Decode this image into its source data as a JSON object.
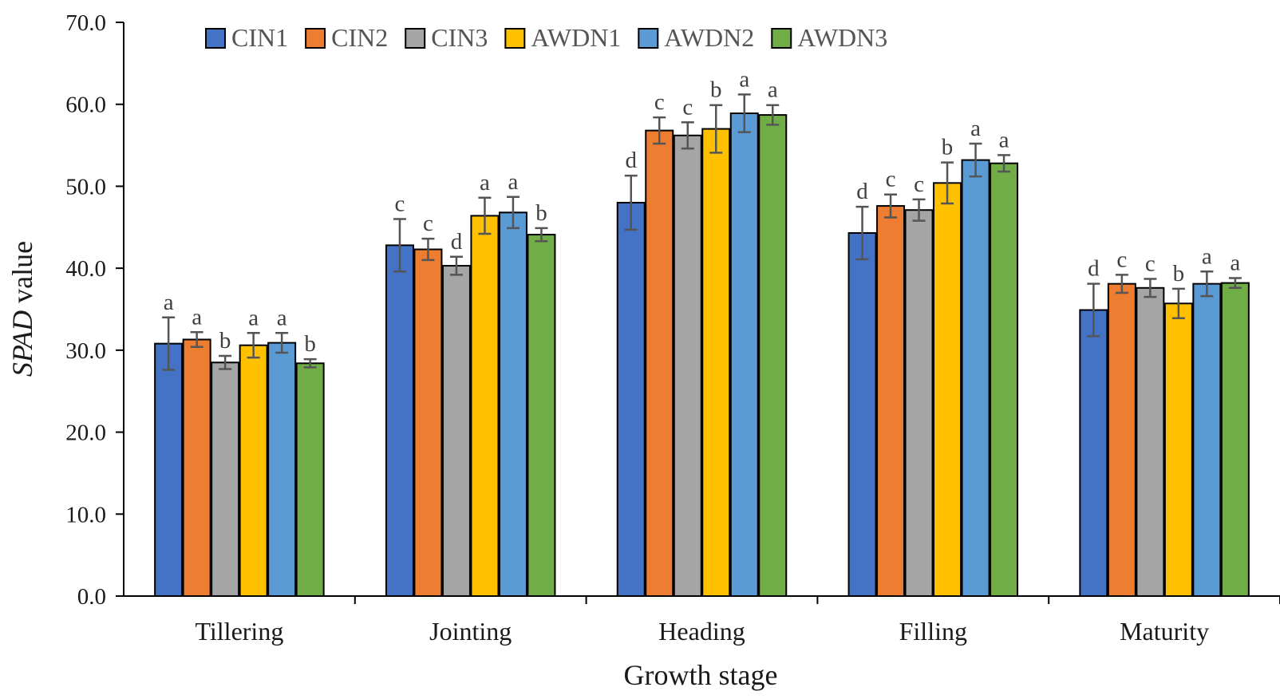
{
  "chart_data": {
    "type": "bar",
    "title": "",
    "xlabel": "Growth stage",
    "ylabel_italic": "SPAD",
    "ylabel_rest": " value",
    "ylim": [
      0,
      70
    ],
    "yticks": [
      "0.0",
      "10.0",
      "20.0",
      "30.0",
      "40.0",
      "50.0",
      "60.0",
      "70.0"
    ],
    "legend_position": "top",
    "categories": [
      "Tillering",
      "Jointing",
      "Heading",
      "Filling",
      "Maturity"
    ],
    "series": [
      {
        "name": "CIN1",
        "color": "#4472C4",
        "values": [
          30.8,
          42.8,
          48.0,
          44.3,
          34.9
        ],
        "errors": [
          3.2,
          3.2,
          3.3,
          3.2,
          3.2
        ],
        "letters": [
          "a",
          "c",
          "d",
          "d",
          "d"
        ]
      },
      {
        "name": "CIN2",
        "color": "#ED7D31",
        "values": [
          31.3,
          42.3,
          56.8,
          47.6,
          38.1
        ],
        "errors": [
          0.9,
          1.3,
          1.6,
          1.4,
          1.1
        ],
        "letters": [
          "a",
          "c",
          "c",
          "c",
          "c"
        ]
      },
      {
        "name": "CIN3",
        "color": "#A5A5A5",
        "values": [
          28.5,
          40.3,
          56.2,
          47.1,
          37.6
        ],
        "errors": [
          0.8,
          1.1,
          1.6,
          1.3,
          1.1
        ],
        "letters": [
          "b",
          "d",
          "c",
          "c",
          "c"
        ]
      },
      {
        "name": "AWDN1",
        "color": "#FFC000",
        "values": [
          30.6,
          46.4,
          57.0,
          50.4,
          35.7
        ],
        "errors": [
          1.5,
          2.2,
          2.9,
          2.5,
          1.8
        ],
        "letters": [
          "a",
          "a",
          "b",
          "b",
          "b"
        ]
      },
      {
        "name": "AWDN2",
        "color": "#5B9BD5",
        "values": [
          30.9,
          46.8,
          58.9,
          53.2,
          38.1
        ],
        "errors": [
          1.2,
          1.9,
          2.3,
          2.0,
          1.5
        ],
        "letters": [
          "a",
          "a",
          "a",
          "a",
          "a"
        ]
      },
      {
        "name": "AWDN3",
        "color": "#70AD47",
        "values": [
          28.4,
          44.1,
          58.7,
          52.8,
          38.2
        ],
        "errors": [
          0.5,
          0.8,
          1.2,
          1.0,
          0.6
        ],
        "letters": [
          "b",
          "b",
          "a",
          "a",
          "a"
        ]
      }
    ]
  }
}
